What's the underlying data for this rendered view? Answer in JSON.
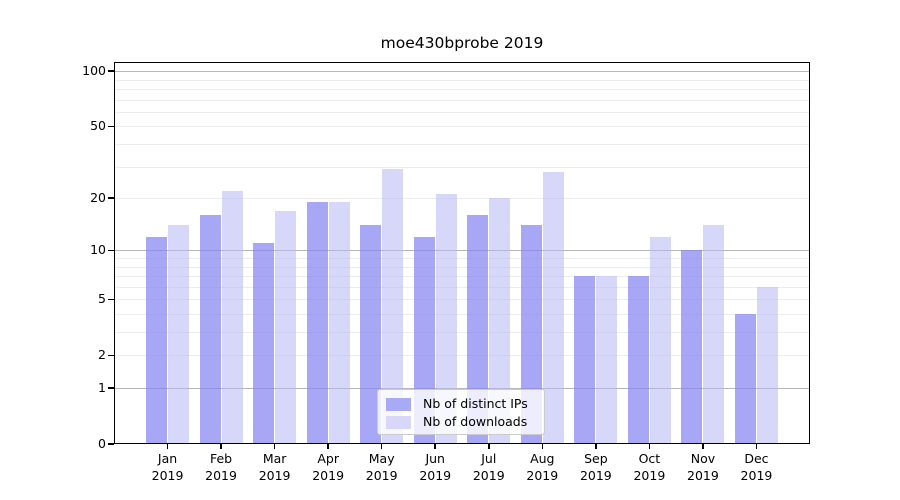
{
  "chart_data": {
    "type": "bar",
    "title": "moe430bprobe 2019",
    "categories": [
      "Jan 2019",
      "Feb 2019",
      "Mar 2019",
      "Apr 2019",
      "May 2019",
      "Jun 2019",
      "Jul 2019",
      "Aug 2019",
      "Sep 2019",
      "Oct 2019",
      "Nov 2019",
      "Dec 2019"
    ],
    "series": [
      {
        "name": "Nb of distinct IPs",
        "values": [
          12,
          16,
          11,
          19,
          14,
          12,
          16,
          14,
          7,
          7,
          10,
          4
        ]
      },
      {
        "name": "Nb of downloads",
        "values": [
          14,
          22,
          17,
          19,
          29,
          21,
          20,
          28,
          7,
          12,
          14,
          6
        ]
      }
    ],
    "xlabel": "",
    "ylabel": "",
    "yscale": "log1p",
    "ylim": [
      0,
      112
    ],
    "yticks": [
      0,
      1,
      2,
      5,
      10,
      20,
      50,
      100
    ],
    "major_gridlines": [
      1,
      10,
      100
    ],
    "minor_gridlines": [
      2,
      3,
      4,
      5,
      6,
      7,
      8,
      9,
      20,
      30,
      40,
      50,
      60,
      70,
      80,
      90
    ],
    "grid": true,
    "legend_position": "lower center"
  },
  "colors": {
    "bar_distinct_ips": "rgba(133,133,242,0.72)",
    "bar_downloads": "rgba(183,183,245,0.55)",
    "bar_distinct_ips_solid": "#a9a9f6",
    "bar_downloads_solid": "#d7d7fa",
    "major_grid": "#b6b6b6",
    "minor_grid": "#ededed",
    "spine": "#000000",
    "background": "#ffffff"
  }
}
